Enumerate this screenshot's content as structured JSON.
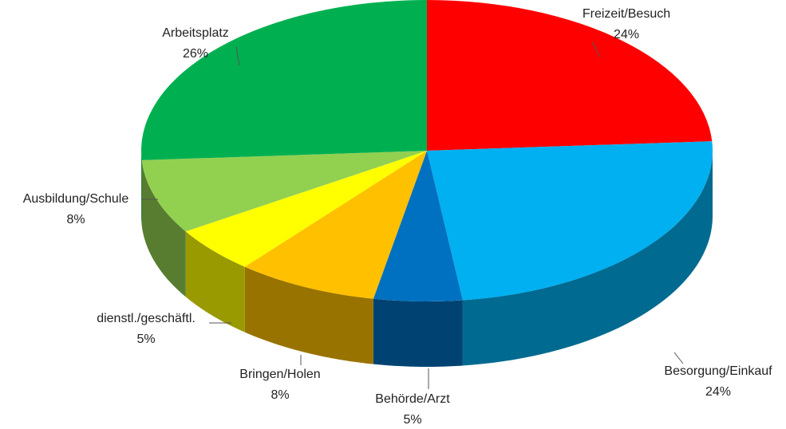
{
  "chart_data": {
    "type": "pie3d",
    "categories": [
      "Freizeit/Besuch",
      "Besorgung/Einkauf",
      "Behörde/Arzt",
      "Bringen/Holen",
      "dienstl./geschäftl.",
      "Ausbildung/Schule",
      "Arbeitsplatz"
    ],
    "values": [
      24,
      24,
      5,
      8,
      5,
      8,
      26
    ],
    "value_labels": [
      "24%",
      "24%",
      "5%",
      "8%",
      "5%",
      "8%",
      "26%"
    ],
    "colors": [
      "#ff0000",
      "#00b0f0",
      "#0070c0",
      "#ffc000",
      "#ffff00",
      "#92d050",
      "#00b050"
    ]
  }
}
